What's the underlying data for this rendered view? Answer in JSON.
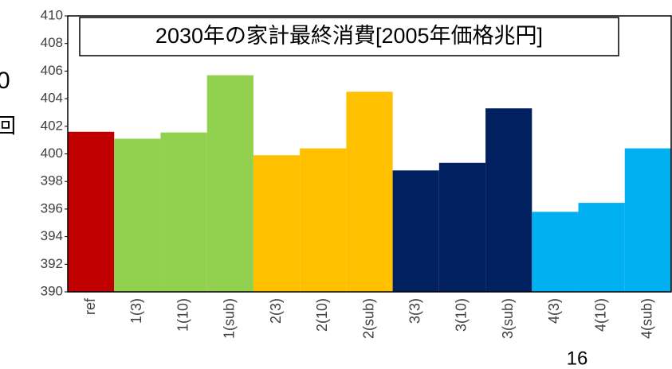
{
  "chart_data": {
    "type": "bar",
    "title": "2030年の家計最終消費[2005年価格兆円]",
    "categories": [
      "ref",
      "1(3)",
      "1(10)",
      "1(sub)",
      "2(3)",
      "2(10)",
      "2(sub)",
      "3(3)",
      "3(10)",
      "3(sub)",
      "4(3)",
      "4(10)",
      "4(sub)"
    ],
    "values": [
      401.6,
      401.1,
      401.55,
      405.7,
      399.9,
      400.4,
      404.5,
      398.8,
      399.35,
      403.3,
      395.8,
      396.45,
      400.4
    ],
    "colors": [
      "#c00000",
      "#92d050",
      "#92d050",
      "#92d050",
      "#ffc000",
      "#ffc000",
      "#ffc000",
      "#002060",
      "#002060",
      "#002060",
      "#00b0f0",
      "#00b0f0",
      "#00b0f0"
    ],
    "ylim": [
      390,
      410
    ],
    "yticks": [
      390,
      392,
      394,
      396,
      398,
      400,
      402,
      404,
      406,
      408,
      410
    ],
    "grid": false
  },
  "left_fragments": [
    "0",
    "回"
  ],
  "page_number": "16"
}
